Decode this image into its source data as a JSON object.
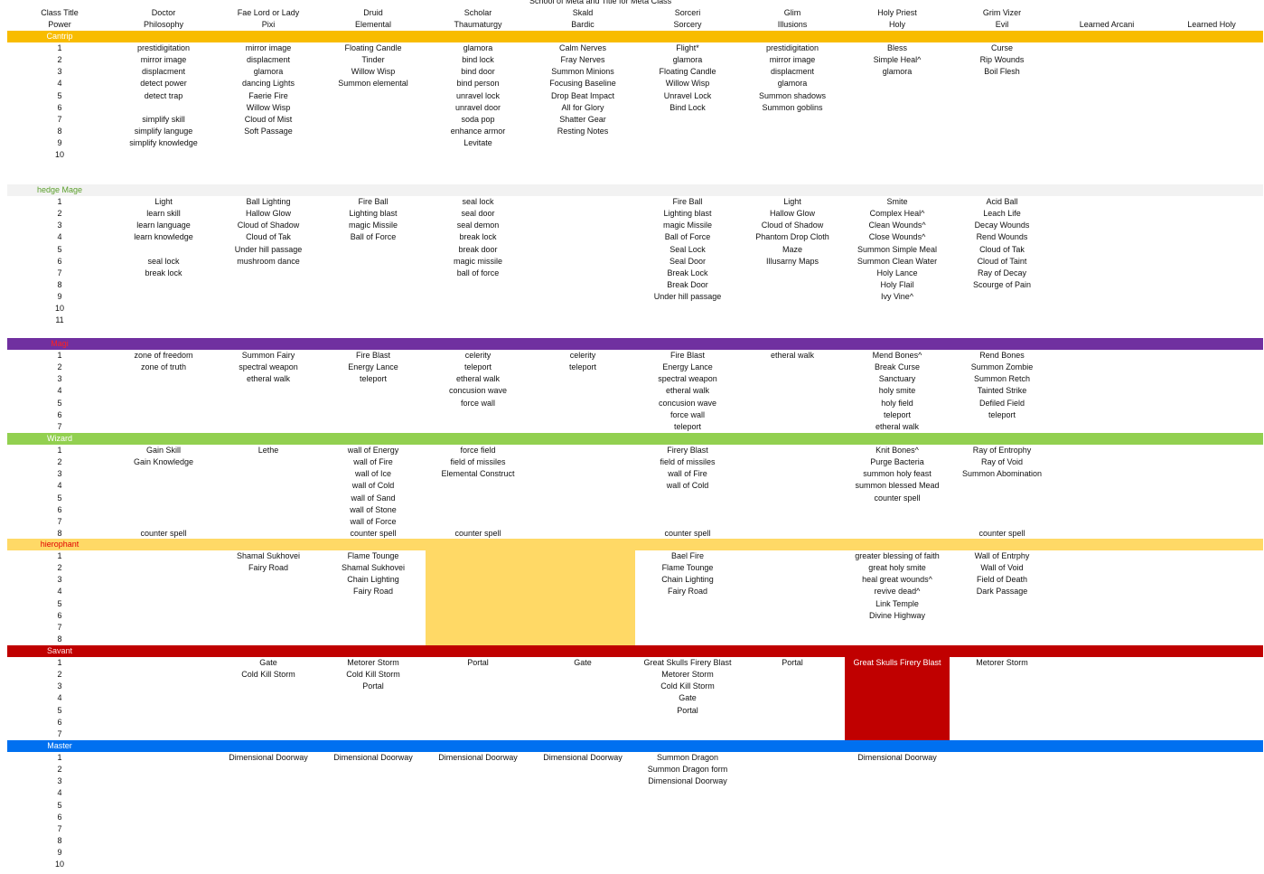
{
  "title": "School of Meta and Title for Meta Class",
  "headers": [
    [
      "Class Title",
      "Doctor",
      "Fae Lord or Lady",
      "Druid",
      "Scholar",
      "Skald",
      "Sorceri",
      "Glim",
      "Holy Priest",
      "Grim Vizer",
      null,
      null
    ],
    [
      "Power",
      "Philosophy",
      "Pixi",
      "Elemental",
      "Thaumaturgy",
      "Bardic",
      "Sorcery",
      "Illusions",
      "Holy",
      "Evil",
      "Learned Arcani",
      "Learned Holy"
    ]
  ],
  "sections": [
    {
      "label": "Cantrip",
      "rows": [
        [
          1,
          "prestidigitation",
          "mirror image",
          "Floating Candle",
          "glamora",
          "Calm Nerves",
          "Flight*",
          "prestidigitation",
          "Bless",
          "Curse"
        ],
        [
          2,
          "mirror image",
          "displacment",
          "Tinder",
          "bind lock",
          "Fray Nerves",
          "glamora",
          "mirror image",
          "Simple Heal^",
          "Rip Wounds"
        ],
        [
          3,
          "displacment",
          "glamora",
          "Willow Wisp",
          "bind door",
          "Summon Minions",
          "Floating Candle",
          "displacment",
          "glamora",
          "Boil  Flesh"
        ],
        [
          4,
          "detect power",
          "dancing Lights",
          "Summon elemental",
          "bind person",
          "Focusing Baseline",
          "Willow Wisp",
          "glamora"
        ],
        [
          5,
          "detect trap",
          "Faerie Fire",
          null,
          "unravel lock",
          "Drop Beat Impact",
          "Unravel Lock",
          "Summon shadows"
        ],
        [
          6,
          null,
          "Willow Wisp",
          null,
          "unravel door",
          "All for Glory",
          "Bind Lock",
          "Summon goblins"
        ],
        [
          7,
          "simplify skill",
          "Cloud of Mist",
          null,
          "soda pop",
          "Shatter Gear"
        ],
        [
          8,
          "simplify languge",
          "Soft Passage",
          null,
          "enhance armor",
          "Resting Notes"
        ],
        [
          9,
          "simplify knowledge",
          null,
          null,
          "Levitate"
        ],
        [
          10
        ]
      ]
    },
    {
      "label": "hedge Mage",
      "rows": [
        [
          1,
          "Light",
          "Ball Lighting",
          "Fire Ball",
          "seal lock",
          null,
          "Fire Ball",
          "Light",
          "Smite",
          "Acid Ball"
        ],
        [
          2,
          "learn skill",
          "Hallow Glow",
          "Lighting blast",
          "seal door",
          null,
          "Lighting blast",
          "Hallow Glow",
          "Complex Heal^",
          "Leach Life"
        ],
        [
          3,
          "learn language",
          "Cloud of Shadow",
          "magic Missile",
          "seal demon",
          null,
          "magic Missile",
          "Cloud of Shadow",
          "Clean Wounds^",
          "Decay Wounds"
        ],
        [
          4,
          "learn knowledge",
          "Cloud of Tak",
          "Ball of Force",
          "break lock",
          null,
          "Ball of Force",
          "Phantom Drop Cloth",
          "Close Wounds^",
          "Rend Wounds"
        ],
        [
          5,
          null,
          "Under hill passage",
          null,
          "break door",
          null,
          "Seal Lock",
          "Maze",
          "Summon Simple Meal",
          "Cloud of Tak"
        ],
        [
          6,
          "seal lock",
          "mushroom dance",
          null,
          "magic missile",
          null,
          "Seal Door",
          "Illusarny Maps",
          "Summon Clean Water",
          "Cloud of Taint"
        ],
        [
          7,
          "break lock",
          null,
          null,
          "ball of force",
          null,
          "Break Lock",
          null,
          "Holy Lance",
          "Ray of Decay"
        ],
        [
          8,
          null,
          null,
          null,
          null,
          null,
          "Break Door",
          null,
          "Holy Flail",
          "Scourge of Pain"
        ],
        [
          9,
          null,
          null,
          null,
          null,
          null,
          "Under hill passage",
          null,
          "Ivy Vine^"
        ],
        [
          10
        ],
        [
          11
        ]
      ]
    },
    {
      "label": "Magi",
      "rows": [
        [
          1,
          "zone of freedom",
          "Summon Fairy",
          "Fire Blast",
          "celerity",
          "celerity",
          "Fire Blast",
          "etheral walk",
          "Mend Bones^",
          "Rend Bones"
        ],
        [
          2,
          "zone of truth",
          "spectral weapon",
          "Energy Lance",
          "teleport",
          "teleport",
          "Energy Lance",
          null,
          "Break Curse",
          "Summon Zombie"
        ],
        [
          3,
          null,
          "etheral walk",
          "teleport",
          "etheral walk",
          null,
          "spectral weapon",
          null,
          "Sanctuary",
          "Summon Retch"
        ],
        [
          4,
          null,
          null,
          null,
          "concusion wave",
          null,
          "etheral walk",
          null,
          "holy smite",
          "Tainted Strike"
        ],
        [
          5,
          null,
          null,
          null,
          "force wall",
          null,
          "concusion wave",
          null,
          "holy field",
          "Defiled Field"
        ],
        [
          6,
          null,
          null,
          null,
          null,
          null,
          "force wall",
          null,
          "teleport",
          "teleport"
        ],
        [
          7,
          null,
          null,
          null,
          null,
          null,
          "teleport",
          null,
          "etheral walk"
        ]
      ]
    },
    {
      "label": "Wizard",
      "rows": [
        [
          1,
          "Gain Skill",
          "Lethe",
          "wall of Energy",
          "force field",
          null,
          "Firery Blast",
          null,
          "Knit Bones^",
          "Ray of Entrophy"
        ],
        [
          2,
          "Gain Knowledge",
          null,
          "wall of Fire",
          "field of missiles",
          null,
          "field of missiles",
          null,
          "Purge Bacteria",
          "Ray of Void"
        ],
        [
          3,
          null,
          null,
          "wall of Ice",
          "Elemental Construct",
          null,
          "wall of Fire",
          null,
          "summon holy feast",
          "Summon Abomination"
        ],
        [
          4,
          null,
          null,
          "wall of Cold",
          null,
          null,
          "wall of Cold",
          null,
          "summon blessed Mead"
        ],
        [
          5,
          null,
          null,
          "wall of Sand",
          null,
          null,
          null,
          null,
          "counter spell"
        ],
        [
          6,
          null,
          null,
          "wall of Stone"
        ],
        [
          7,
          null,
          null,
          "wall of Force"
        ],
        [
          8,
          "counter spell",
          null,
          "counter spell",
          "counter spell",
          null,
          "counter spell",
          null,
          null,
          "counter spell"
        ]
      ]
    },
    {
      "label": "hierophant",
      "rows": [
        [
          1,
          null,
          "Shamal Sukhovei",
          "Flame Tounge",
          null,
          null,
          "Bael Fire",
          null,
          "greater blessing of faith",
          "Wall of Entrphy"
        ],
        [
          2,
          null,
          "Fairy  Road",
          "Shamal Sukhovei",
          null,
          null,
          "Flame Tounge",
          null,
          "great holy smite",
          "Wall of Void"
        ],
        [
          3,
          null,
          null,
          "Chain Lighting",
          null,
          null,
          "Chain Lighting",
          null,
          "heal great wounds^",
          "Field of Death"
        ],
        [
          4,
          null,
          null,
          "Fairy Road",
          null,
          null,
          "Fairy Road",
          null,
          "revive dead^",
          "Dark Passage"
        ],
        [
          5,
          null,
          null,
          null,
          null,
          null,
          null,
          null,
          "Link Temple"
        ],
        [
          6,
          null,
          null,
          null,
          null,
          null,
          null,
          null,
          "Divine Highway"
        ],
        [
          7
        ],
        [
          8
        ]
      ]
    },
    {
      "label": "Savant",
      "rows": [
        [
          1,
          null,
          "Gate",
          "Metorer Storm",
          "Portal",
          "Gate",
          "Great Skulls Firery Blast",
          "Portal",
          "Great Skulls Firery Blast",
          "Metorer Storm"
        ],
        [
          2,
          null,
          "Cold Kill Storm",
          "Cold Kill Storm",
          null,
          null,
          "Metorer Storm"
        ],
        [
          3,
          null,
          null,
          "Portal",
          null,
          null,
          "Cold Kill Storm"
        ],
        [
          4,
          null,
          null,
          null,
          null,
          null,
          "Gate"
        ],
        [
          5,
          null,
          null,
          null,
          null,
          null,
          "Portal"
        ],
        [
          6
        ],
        [
          7
        ]
      ]
    },
    {
      "label": "Master",
      "rows": [
        [
          1,
          null,
          "Dimensional Doorway",
          "Dimensional Doorway",
          "Dimensional Doorway",
          "Dimensional Doorway",
          "Summon Dragon",
          null,
          "Dimensional Doorway"
        ],
        [
          2,
          null,
          null,
          null,
          null,
          null,
          "Summon Dragon form"
        ],
        [
          3,
          null,
          null,
          null,
          null,
          null,
          "Dimensional Doorway"
        ],
        [
          4
        ],
        [
          5
        ],
        [
          6
        ],
        [
          7
        ],
        [
          8
        ],
        [
          9
        ],
        [
          10
        ]
      ]
    }
  ]
}
